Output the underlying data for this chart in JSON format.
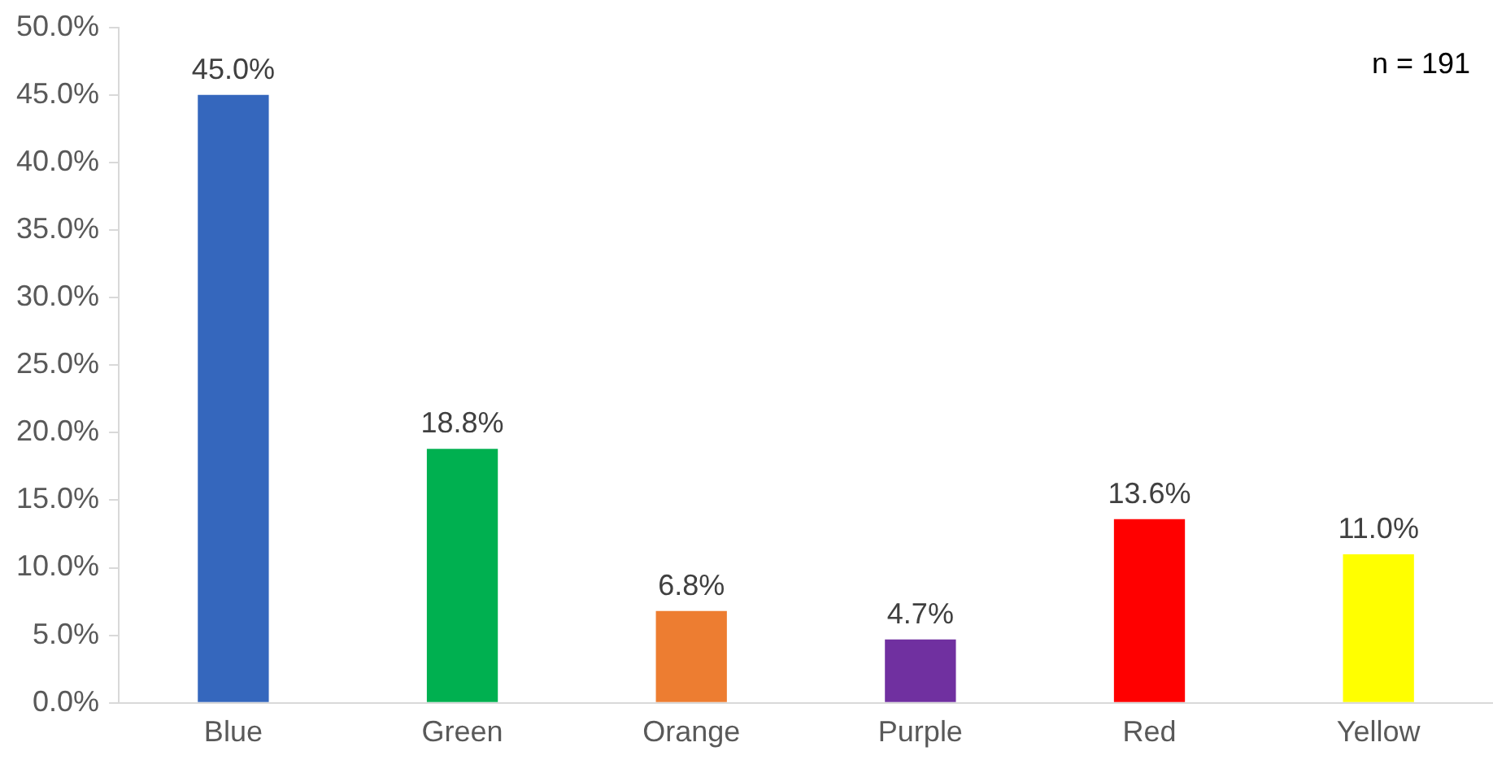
{
  "chart_data": {
    "type": "bar",
    "categories": [
      "Blue",
      "Green",
      "Orange",
      "Purple",
      "Red",
      "Yellow"
    ],
    "values": [
      45.0,
      18.8,
      6.8,
      4.7,
      13.6,
      11.0
    ],
    "colors": [
      "#3567bd",
      "#00b050",
      "#ed7d31",
      "#7030a0",
      "#ff0000",
      "#ffff00"
    ],
    "value_labels": [
      "45.0%",
      "18.8%",
      "6.8%",
      "4.7%",
      "13.6%",
      "11.0%"
    ],
    "ylim": [
      0,
      50
    ],
    "yticks": [
      {
        "value": 0,
        "label": "0.0%"
      },
      {
        "value": 5,
        "label": "5.0%"
      },
      {
        "value": 10,
        "label": "10.0%"
      },
      {
        "value": 15,
        "label": "15.0%"
      },
      {
        "value": 20,
        "label": "20.0%"
      },
      {
        "value": 25,
        "label": "25.0%"
      },
      {
        "value": 30,
        "label": "30.0%"
      },
      {
        "value": 35,
        "label": "35.0%"
      },
      {
        "value": 40,
        "label": "40.0%"
      },
      {
        "value": 45,
        "label": "45.0%"
      },
      {
        "value": 50,
        "label": "50.0%"
      }
    ],
    "annotations": [
      "n = 191"
    ],
    "grid": false,
    "legend": false
  }
}
